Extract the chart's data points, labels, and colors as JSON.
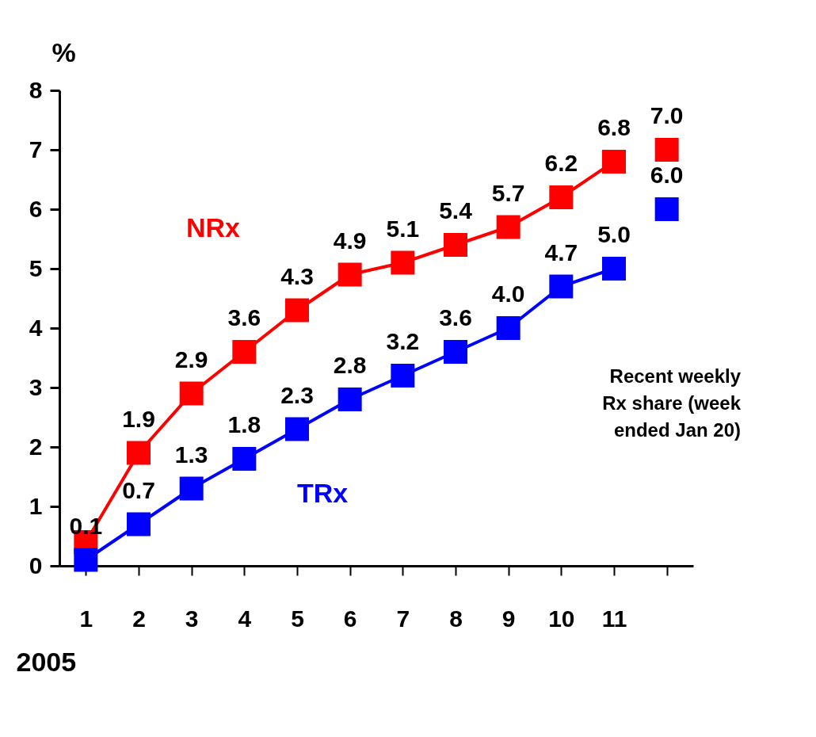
{
  "chart_data": {
    "type": "line",
    "ylabel": "%",
    "xlabel": "2005",
    "categories": [
      "1",
      "2",
      "3",
      "4",
      "5",
      "6",
      "7",
      "8",
      "9",
      "10",
      "11",
      null
    ],
    "ylim": [
      0,
      8
    ],
    "yticks": [
      0,
      1,
      2,
      3,
      4,
      5,
      6,
      7,
      8
    ],
    "marker": "square",
    "line_style": "solid",
    "annotations": [
      {
        "text": "Recent weekly Rx share (week ended  Jan 20)"
      }
    ],
    "series": [
      {
        "name": "NRx",
        "color": "#ff0000",
        "values": [
          0.4,
          1.9,
          2.9,
          3.6,
          4.3,
          4.9,
          5.1,
          5.4,
          5.7,
          6.2,
          6.8,
          null
        ],
        "value_labels": [
          null,
          "1.9",
          "2.9",
          "3.6",
          "4.3",
          "4.9",
          "5.1",
          "5.4",
          "5.7",
          "6.2",
          "6.8",
          null
        ]
      },
      {
        "name": "TRx",
        "color": "#0000ff",
        "values": [
          0.1,
          0.7,
          1.3,
          1.8,
          2.3,
          2.8,
          3.2,
          3.6,
          4.0,
          4.7,
          5.0,
          null
        ],
        "value_labels": [
          "0.1",
          "0.7",
          "1.3",
          "1.8",
          "2.3",
          "2.8",
          "3.2",
          "3.6",
          "4.0",
          "4.7",
          "5.0",
          null
        ]
      },
      {
        "type": "scatter",
        "color": "#ff0000",
        "values": [
          null,
          null,
          null,
          null,
          null,
          null,
          null,
          null,
          null,
          null,
          null,
          7.0
        ],
        "value_labels": [
          null,
          null,
          null,
          null,
          null,
          null,
          null,
          null,
          null,
          null,
          null,
          "7.0"
        ]
      },
      {
        "type": "scatter",
        "color": "#0000ff",
        "values": [
          null,
          null,
          null,
          null,
          null,
          null,
          null,
          null,
          null,
          null,
          null,
          6.0
        ],
        "value_labels": [
          null,
          null,
          null,
          null,
          null,
          null,
          null,
          null,
          null,
          null,
          null,
          "6.0"
        ]
      }
    ]
  }
}
